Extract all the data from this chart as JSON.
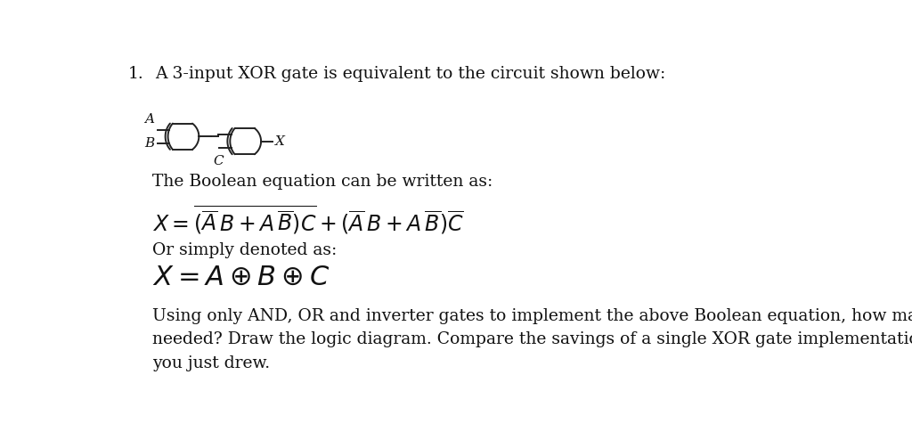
{
  "title_number": "1.",
  "line1": "A 3-input XOR gate is equivalent to the circuit shown below:",
  "boolean_label": "The Boolean equation can be written as:",
  "or_simply": "Or simply denoted as:",
  "last_paragraph": "Using only AND, OR and inverter gates to implement the above Boolean equation, how many gates are\nneeded? Draw the logic diagram. Compare the savings of a single XOR gate implementation with the circuit\nyou just drew.",
  "background_color": "#ffffff",
  "text_color": "#111111",
  "font_family": "serif",
  "main_fontsize": 13.5,
  "eq_fontsize": 17,
  "xor_fontsize": 22,
  "gate_color": "#222222",
  "gate_lw": 1.4
}
